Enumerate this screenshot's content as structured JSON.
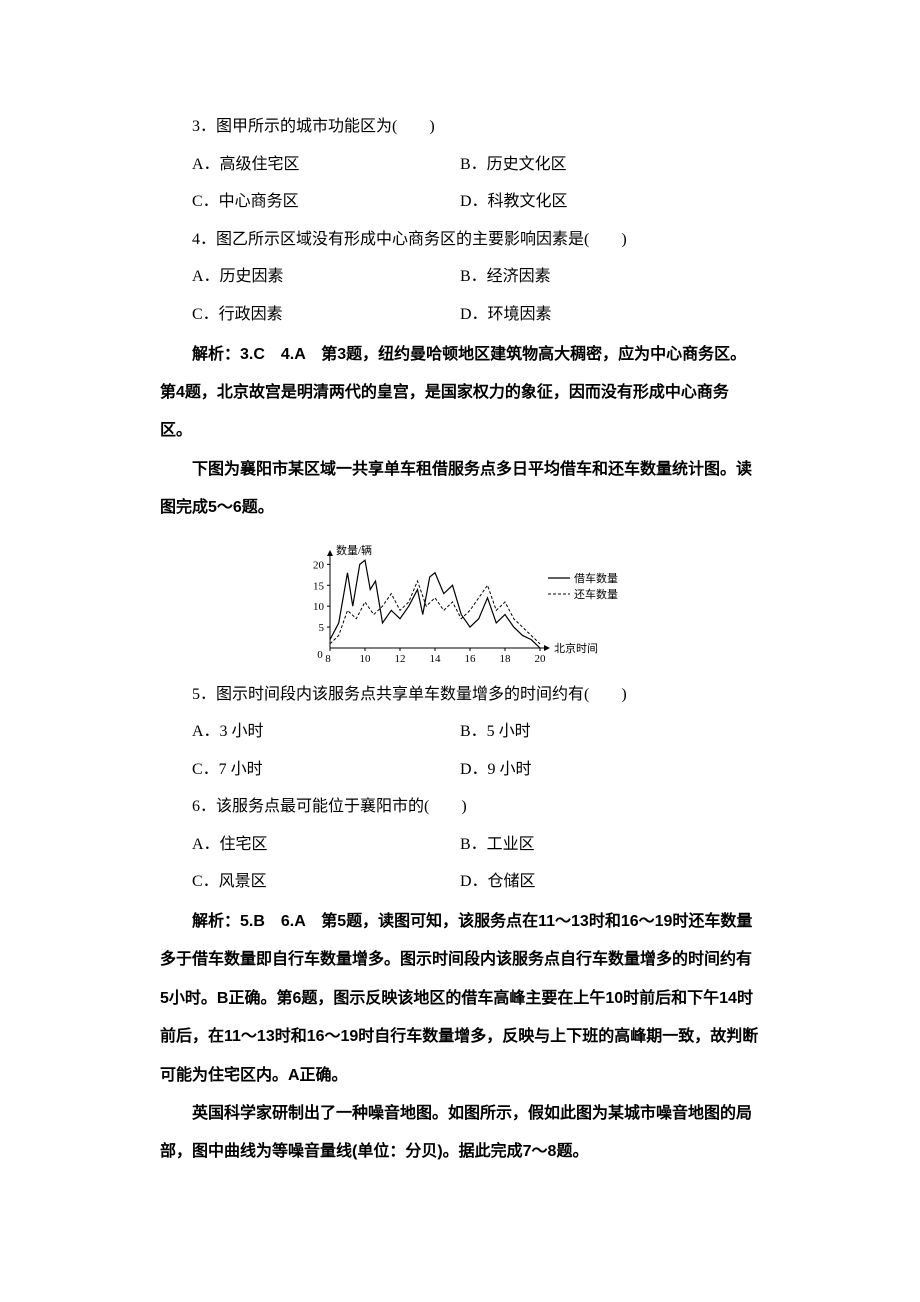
{
  "q3": {
    "stem": "3．图甲所示的城市功能区为(　　)",
    "options": {
      "A": "A．高级住宅区",
      "B": "B．历史文化区",
      "C": "C．中心商务区",
      "D": "D．科教文化区"
    }
  },
  "q4": {
    "stem": "4．图乙所示区域没有形成中心商务区的主要影响因素是(　　)",
    "options": {
      "A": "A．历史因素",
      "B": "B．经济因素",
      "C": "C．行政因素",
      "D": "D．环境因素"
    }
  },
  "analysis34": "解析：3.C　4.A　第3题，纽约曼哈顿地区建筑物高大稠密，应为中心商务区。第4题，北京故宫是明清两代的皇宫，是国家权力的象征，因而没有形成中心商务区。",
  "passage56": "下图为襄阳市某区域一共享单车租借服务点多日平均借车和还车数量统计图。读图完成5～6题。",
  "chart": {
    "type": "line",
    "y_label": "数量/辆",
    "x_label": "北京时间",
    "x_ticks": [
      8,
      10,
      12,
      14,
      16,
      18,
      20
    ],
    "y_ticks": [
      0,
      5,
      10,
      15,
      20
    ],
    "xlim": [
      8,
      20
    ],
    "ylim": [
      0,
      22
    ],
    "legend": {
      "borrow": "借车数量",
      "return": "还车数量"
    },
    "borrow": {
      "color": "#000000",
      "dash": "solid",
      "points": [
        [
          8,
          2
        ],
        [
          8.5,
          6
        ],
        [
          9,
          18
        ],
        [
          9.3,
          10
        ],
        [
          9.7,
          20
        ],
        [
          10,
          21
        ],
        [
          10.3,
          14
        ],
        [
          10.6,
          16
        ],
        [
          11,
          6
        ],
        [
          11.5,
          9
        ],
        [
          12,
          7
        ],
        [
          12.5,
          10
        ],
        [
          13,
          14
        ],
        [
          13.3,
          8
        ],
        [
          13.7,
          17
        ],
        [
          14,
          18
        ],
        [
          14.5,
          13
        ],
        [
          15,
          15
        ],
        [
          15.5,
          8
        ],
        [
          16,
          5
        ],
        [
          16.5,
          7
        ],
        [
          17,
          12
        ],
        [
          17.5,
          6
        ],
        [
          18,
          8
        ],
        [
          18.5,
          5
        ],
        [
          19,
          3
        ],
        [
          19.5,
          2
        ],
        [
          20,
          0
        ]
      ]
    },
    "return": {
      "color": "#000000",
      "dash": "dashed",
      "points": [
        [
          8,
          1
        ],
        [
          8.5,
          3
        ],
        [
          9,
          9
        ],
        [
          9.5,
          7
        ],
        [
          10,
          11
        ],
        [
          10.5,
          8
        ],
        [
          11,
          10
        ],
        [
          11.5,
          13
        ],
        [
          12,
          9
        ],
        [
          12.5,
          11
        ],
        [
          13,
          16
        ],
        [
          13.5,
          10
        ],
        [
          14,
          12
        ],
        [
          14.5,
          9
        ],
        [
          15,
          11
        ],
        [
          15.5,
          7
        ],
        [
          16,
          9
        ],
        [
          16.5,
          12
        ],
        [
          17,
          15
        ],
        [
          17.5,
          9
        ],
        [
          18,
          11
        ],
        [
          18.5,
          7
        ],
        [
          19,
          5
        ],
        [
          19.5,
          3
        ],
        [
          20,
          1
        ]
      ]
    },
    "axis_fontsize": 11,
    "tick_fontsize": 11,
    "background_color": "#ffffff"
  },
  "q5": {
    "stem": "5．图示时间段内该服务点共享单车数量增多的时间约有(　　)",
    "options": {
      "A": "A．3 小时",
      "B": "B．5 小时",
      "C": "C．7 小时",
      "D": "D．9 小时"
    }
  },
  "q6": {
    "stem": "6．该服务点最可能位于襄阳市的(　　)",
    "options": {
      "A": "A．住宅区",
      "B": "B．工业区",
      "C": "C．风景区",
      "D": "D．仓储区"
    }
  },
  "analysis56": "解析：5.B　6.A　第5题，读图可知，该服务点在11～13时和16～19时还车数量多于借车数量即自行车数量增多。图示时间段内该服务点自行车数量增多的时间约有5小时。B正确。第6题，图示反映该地区的借车高峰主要在上午10时前后和下午14时前后，在11～13时和16～19时自行车数量增多，反映与上下班的高峰期一致，故判断可能为住宅区内。A正确。",
  "passage78": "英国科学家研制出了一种噪音地图。如图所示，假如此图为某城市噪音地图的局部，图中曲线为等噪音量线(单位：分贝)。据此完成7～8题。"
}
